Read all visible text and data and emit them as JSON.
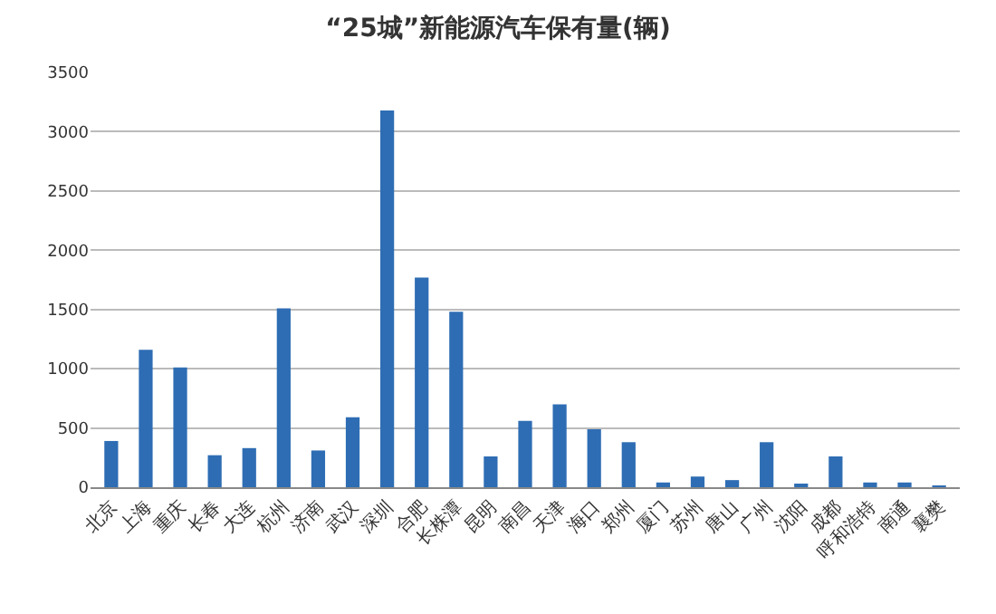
{
  "chart_data": {
    "type": "bar",
    "title": "“25城”新能源汽车保有量(辆)",
    "categories": [
      "北京",
      "上海",
      "重庆",
      "长春",
      "大连",
      "杭州",
      "济南",
      "武汉",
      "深圳",
      "合肥",
      "长株潭",
      "昆明",
      "南昌",
      "天津",
      "海口",
      "郑州",
      "厦门",
      "苏州",
      "唐山",
      "广州",
      "沈阳",
      "成都",
      "呼和浩特",
      "南通",
      "襄樊"
    ],
    "values": [
      390,
      1160,
      1010,
      270,
      330,
      1510,
      310,
      590,
      3180,
      1770,
      1480,
      260,
      560,
      700,
      490,
      380,
      40,
      90,
      60,
      380,
      20,
      260,
      40,
      40,
      10
    ],
    "color": "#2e6db4",
    "ylim": [
      0,
      3500
    ],
    "yticks": [
      0,
      500,
      1000,
      1500,
      2000,
      2500,
      3000,
      3500
    ],
    "grid": "y",
    "legend": false
  }
}
